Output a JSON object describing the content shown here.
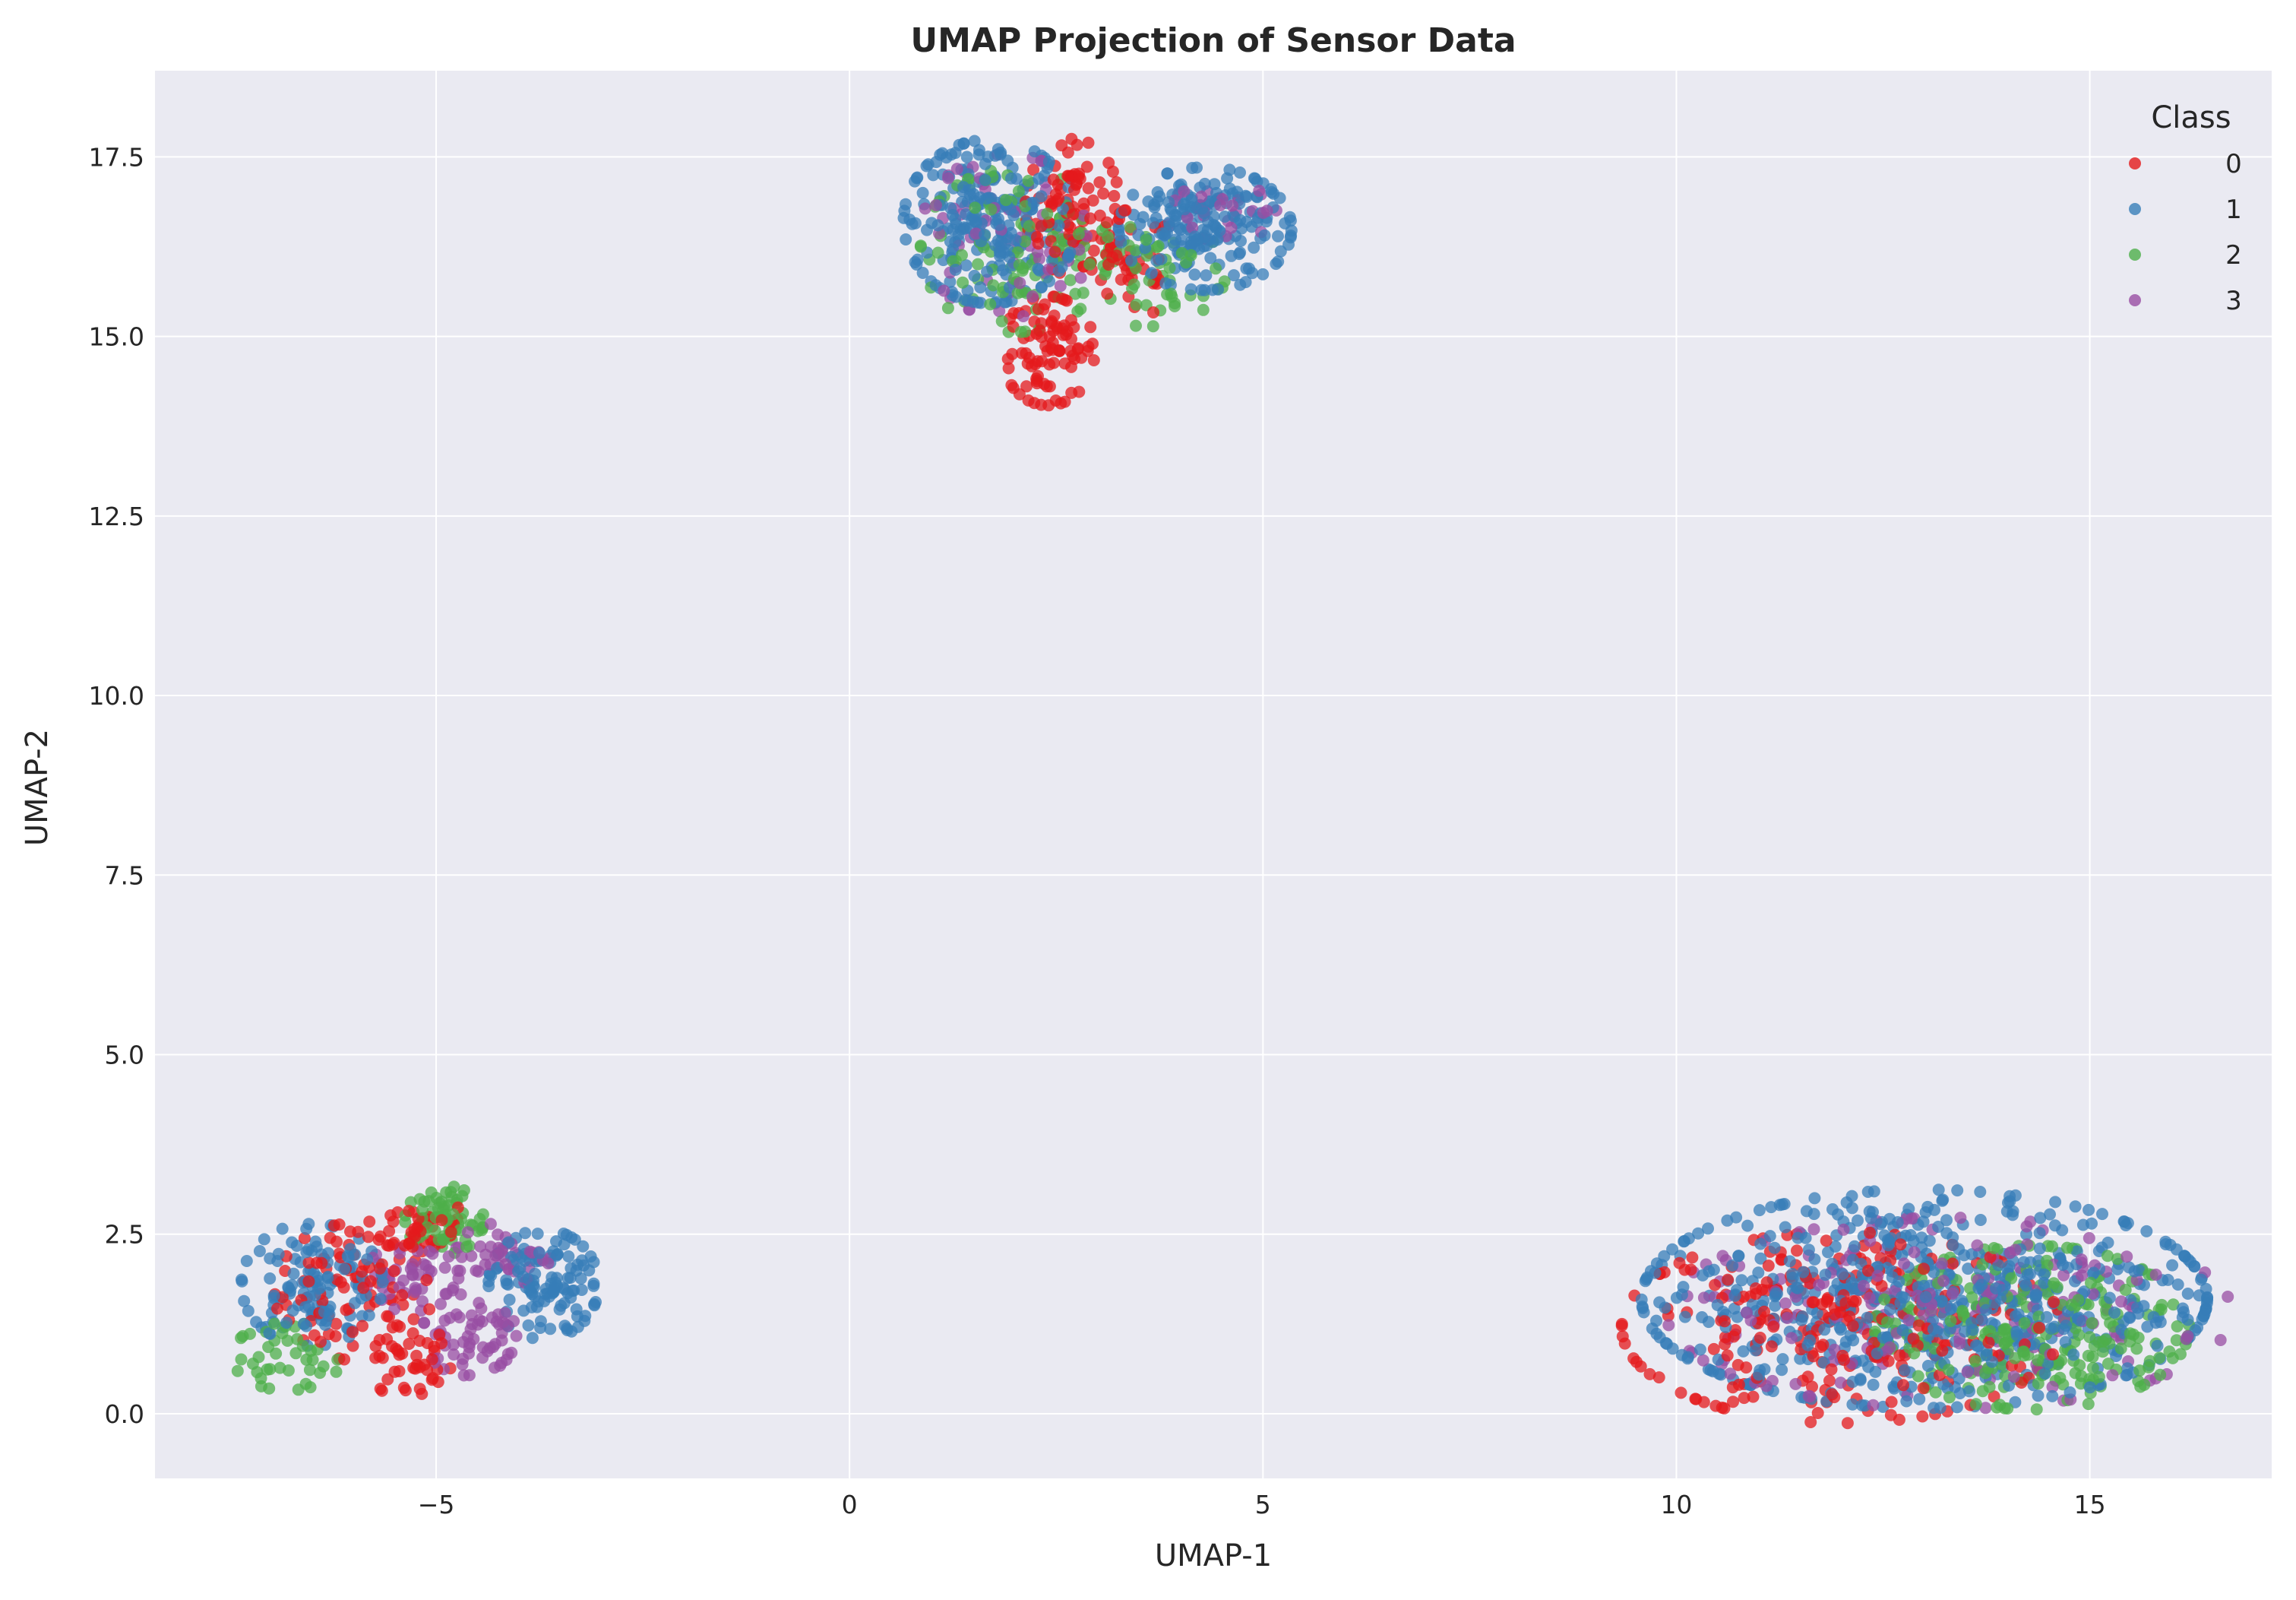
{
  "chart_data": {
    "type": "scatter",
    "title": "UMAP Projection of Sensor Data",
    "xlabel": "UMAP-1",
    "ylabel": "UMAP-2",
    "xlim": [
      -8.4,
      17.2
    ],
    "ylim": [
      -0.9,
      18.7
    ],
    "xticks": [
      -5,
      0,
      5,
      10,
      15
    ],
    "xtick_labels": [
      "−5",
      "0",
      "5",
      "10",
      "15"
    ],
    "yticks": [
      0,
      2.5,
      5,
      7.5,
      10,
      12.5,
      15,
      17.5
    ],
    "ytick_labels": [
      "0.0",
      "2.5",
      "5.0",
      "7.5",
      "10.0",
      "12.5",
      "15.0",
      "17.5"
    ],
    "grid": true,
    "background": "#eaeaf2",
    "legend": {
      "title": "Class",
      "placement": "top-right"
    },
    "series": [
      {
        "name": "0",
        "color": "#e41a1c",
        "clusters": [
          {
            "center": [
              -6.0,
              1.7
            ],
            "spread": [
              0.5,
              0.5
            ],
            "n": 90
          },
          {
            "center": [
              -5.3,
              0.7
            ],
            "spread": [
              0.25,
              0.3
            ],
            "n": 40
          },
          {
            "center": [
              -5.2,
              2.6
            ],
            "spread": [
              0.35,
              0.2
            ],
            "n": 40
          },
          {
            "center": [
              2.7,
              16.8
            ],
            "spread": [
              0.3,
              0.5
            ],
            "n": 90
          },
          {
            "center": [
              2.4,
              14.8
            ],
            "spread": [
              0.3,
              0.4
            ],
            "n": 90
          },
          {
            "center": [
              3.4,
              16.0
            ],
            "spread": [
              0.3,
              0.4
            ],
            "n": 40
          },
          {
            "center": [
              12.0,
              1.2
            ],
            "spread": [
              1.4,
              0.7
            ],
            "n": 260
          }
        ]
      },
      {
        "name": "1",
        "color": "#377eb8",
        "clusters": [
          {
            "center": [
              -6.5,
              1.8
            ],
            "spread": [
              0.45,
              0.45
            ],
            "n": 120
          },
          {
            "center": [
              -3.7,
              1.8
            ],
            "spread": [
              0.35,
              0.4
            ],
            "n": 120
          },
          {
            "center": [
              1.7,
              16.6
            ],
            "spread": [
              0.55,
              0.6
            ],
            "n": 230
          },
          {
            "center": [
              4.3,
              16.5
            ],
            "spread": [
              0.55,
              0.45
            ],
            "n": 200
          },
          {
            "center": [
              13.0,
              1.6
            ],
            "spread": [
              1.8,
              0.8
            ],
            "n": 650
          }
        ]
      },
      {
        "name": "2",
        "color": "#4daf4a",
        "clusters": [
          {
            "center": [
              -6.8,
              0.8
            ],
            "spread": [
              0.35,
              0.25
            ],
            "n": 40
          },
          {
            "center": [
              -4.9,
              2.7
            ],
            "spread": [
              0.25,
              0.25
            ],
            "n": 70
          },
          {
            "center": [
              2.0,
              16.2
            ],
            "spread": [
              0.6,
              0.6
            ],
            "n": 110
          },
          {
            "center": [
              3.6,
              15.9
            ],
            "spread": [
              0.5,
              0.4
            ],
            "n": 50
          },
          {
            "center": [
              14.3,
              1.2
            ],
            "spread": [
              1.0,
              0.6
            ],
            "n": 260
          }
        ]
      },
      {
        "name": "3",
        "color": "#984ea3",
        "clusters": [
          {
            "center": [
              -5.3,
              1.9
            ],
            "spread": [
              0.3,
              0.25
            ],
            "n": 50
          },
          {
            "center": [
              -4.6,
              1.1
            ],
            "spread": [
              0.3,
              0.3
            ],
            "n": 60
          },
          {
            "center": [
              -4.2,
              2.2
            ],
            "spread": [
              0.3,
              0.25
            ],
            "n": 40
          },
          {
            "center": [
              1.9,
              16.4
            ],
            "spread": [
              0.55,
              0.6
            ],
            "n": 70
          },
          {
            "center": [
              4.5,
              16.7
            ],
            "spread": [
              0.35,
              0.3
            ],
            "n": 30
          },
          {
            "center": [
              13.3,
              1.4
            ],
            "spread": [
              1.8,
              0.7
            ],
            "n": 200
          }
        ]
      }
    ]
  }
}
